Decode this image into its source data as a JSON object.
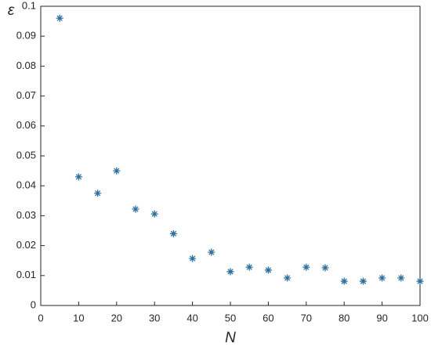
{
  "chart_data": {
    "type": "scatter",
    "x_label": "N",
    "y_label": "ε",
    "x": [
      5,
      10,
      15,
      20,
      25,
      30,
      35,
      40,
      45,
      50,
      55,
      60,
      65,
      70,
      75,
      80,
      85,
      90,
      95,
      100
    ],
    "series": [
      {
        "color": "#2b6f9e",
        "values": [
          0.096,
          0.043,
          0.0375,
          0.045,
          0.0322,
          0.0306,
          0.024,
          0.0157,
          0.0178,
          0.0113,
          0.0128,
          0.0118,
          0.0092,
          0.0128,
          0.0126,
          0.0081,
          0.0081,
          0.0092,
          0.0092,
          0.0081
        ]
      }
    ],
    "xlim": [
      0,
      100
    ],
    "xticks": [
      0,
      10,
      20,
      30,
      40,
      50,
      60,
      70,
      80,
      90,
      100
    ],
    "ylim": [
      0,
      0.1
    ],
    "yticks": [
      0,
      0.01,
      0.02,
      0.03,
      0.04,
      0.05,
      0.06,
      0.07,
      0.08,
      0.09,
      0.1
    ],
    "grid": false
  }
}
